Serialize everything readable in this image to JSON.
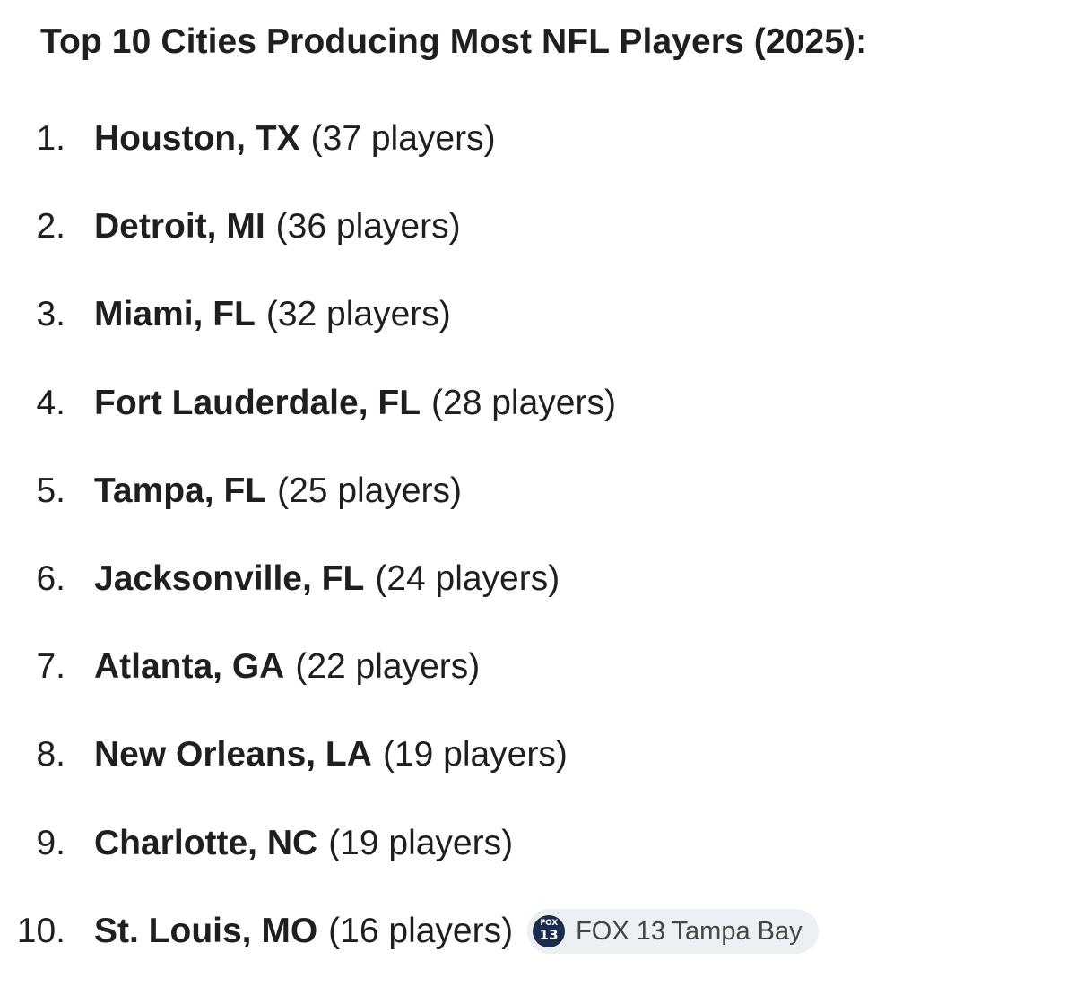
{
  "heading": "Top 10 Cities Producing Most NFL Players (2025):",
  "items": [
    {
      "number": "1.",
      "city": "Houston, TX",
      "count": "(37 players)"
    },
    {
      "number": "2.",
      "city": "Detroit, MI",
      "count": "(36 players)"
    },
    {
      "number": "3.",
      "city": "Miami, FL",
      "count": "(32 players)"
    },
    {
      "number": "4.",
      "city": "Fort Lauderdale, FL",
      "count": "(28 players)"
    },
    {
      "number": "5.",
      "city": "Tampa, FL",
      "count": "(25 players)"
    },
    {
      "number": "6.",
      "city": "Jacksonville, FL",
      "count": "(24 players)"
    },
    {
      "number": "7.",
      "city": "Atlanta, GA",
      "count": "(22 players)"
    },
    {
      "number": "8.",
      "city": "New Orleans, LA",
      "count": "(19 players)"
    },
    {
      "number": "9.",
      "city": "Charlotte, NC",
      "count": "(19 players)"
    },
    {
      "number": "10.",
      "city": "St. Louis, MO",
      "count": "(16 players)"
    }
  ],
  "source": {
    "name": "FOX 13 Tampa Bay",
    "logo_line1": "FOX",
    "logo_line2": "13",
    "logo_color": "#1a2c4e",
    "chip_color": "#eceff3",
    "icon": "fox13-logo-icon"
  }
}
